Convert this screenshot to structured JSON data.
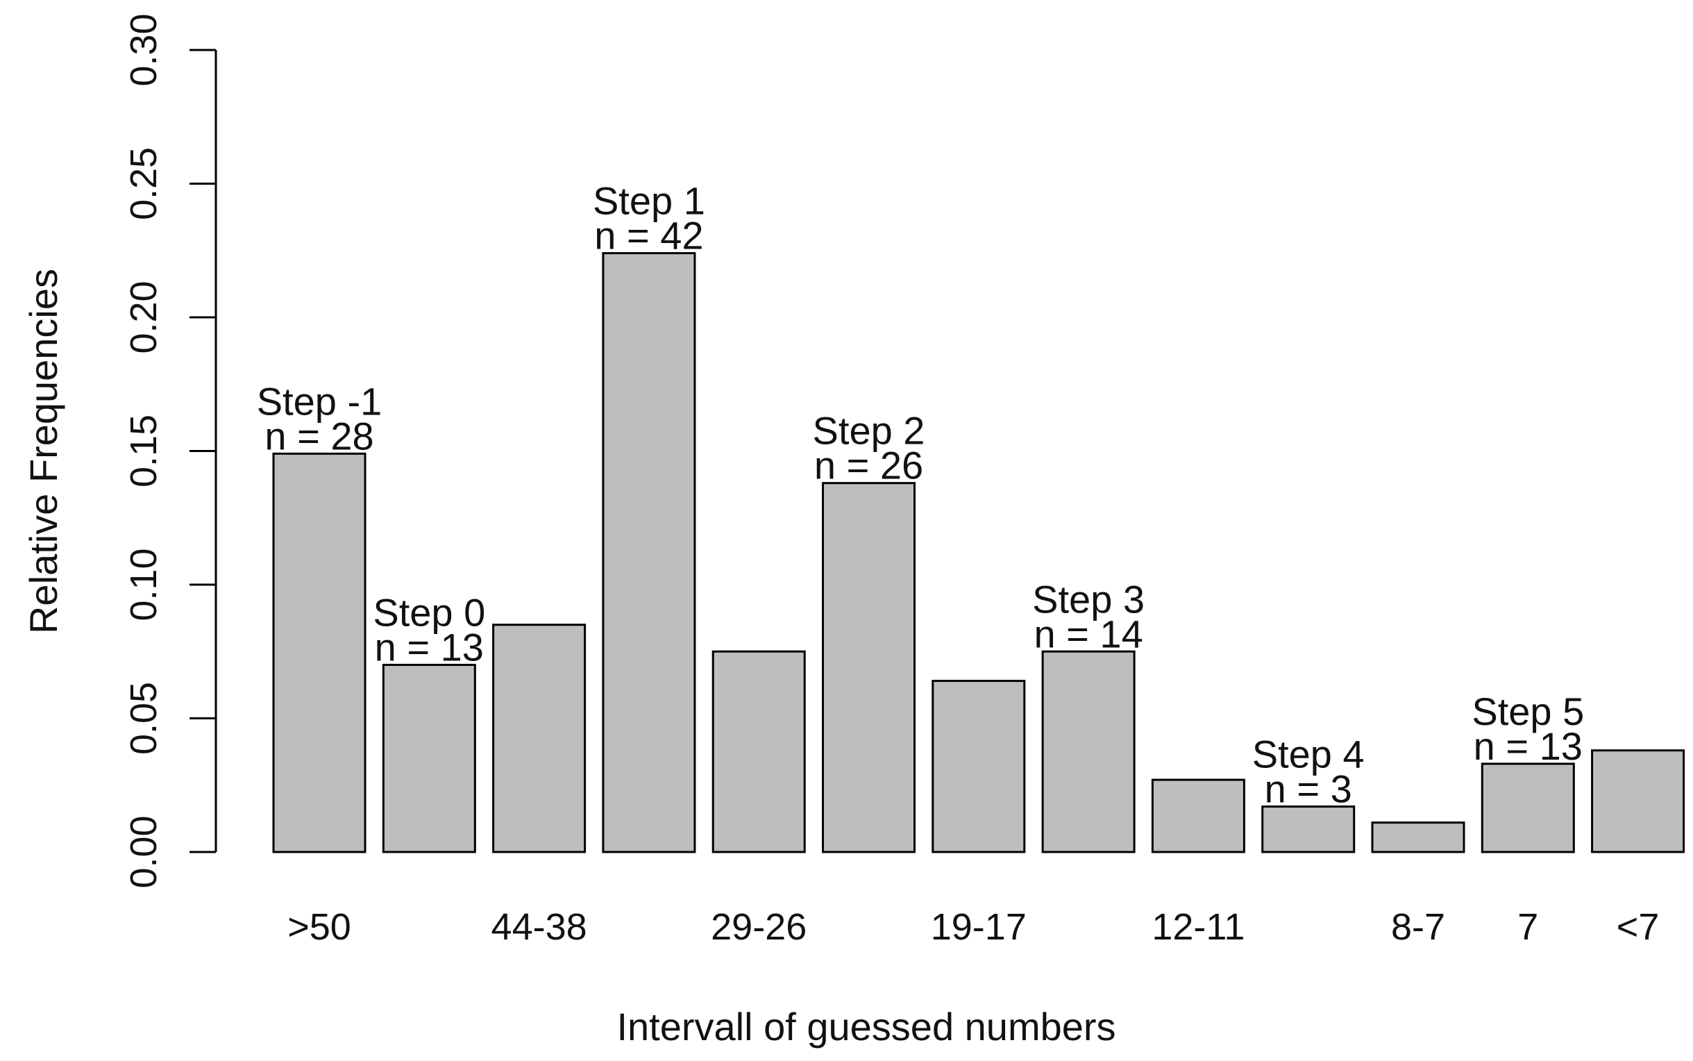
{
  "chart_data": {
    "type": "bar",
    "title": "",
    "xlabel": "Intervall of guessed numbers",
    "ylabel": "Relative Frequencies",
    "ylim": [
      0,
      0.3
    ],
    "yticks": [
      "0.00",
      "0.05",
      "0.10",
      "0.15",
      "0.20",
      "0.25",
      "0.30"
    ],
    "grid": false,
    "legend": "none",
    "bar_color": "#bebebe",
    "categories": [
      ">50",
      "",
      "44-38",
      "",
      "29-26",
      "",
      "19-17",
      "",
      "12-11",
      "",
      "8-7",
      "7",
      "<7"
    ],
    "values": [
      0.149,
      0.07,
      0.085,
      0.224,
      0.075,
      0.138,
      0.064,
      0.075,
      0.027,
      0.017,
      0.011,
      0.033,
      0.038
    ],
    "annotations": [
      {
        "bar": 0,
        "step": "Step -1",
        "n": "n = 28"
      },
      {
        "bar": 1,
        "step": "Step 0",
        "n": "n = 13"
      },
      {
        "bar": 3,
        "step": "Step 1",
        "n": "n = 42"
      },
      {
        "bar": 5,
        "step": "Step 2",
        "n": "n = 26"
      },
      {
        "bar": 7,
        "step": "Step 3",
        "n": "n = 14"
      },
      {
        "bar": 9,
        "step": "Step 4",
        "n": "n = 3"
      },
      {
        "bar": 11,
        "step": "Step 5",
        "n": "n = 13"
      }
    ]
  }
}
